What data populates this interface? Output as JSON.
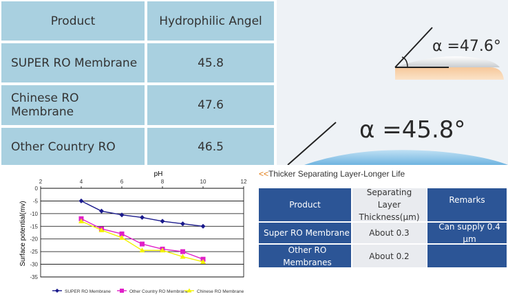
{
  "hydrophilic_table": {
    "header": {
      "product": "Product",
      "angle": "Hydrophilic Angel"
    },
    "rows": [
      {
        "product": "SUPER RO Membrane",
        "angle": "45.8"
      },
      {
        "product": "Chinese RO Membrane",
        "angle": "47.6"
      },
      {
        "product": "Other Country  RO",
        "angle": "46.5"
      }
    ]
  },
  "angle_panel": {
    "small_label": "α =47.6°",
    "large_label": "α =45.8°"
  },
  "chart_data": {
    "type": "line",
    "xlabel": "pH",
    "ylabel": "Surface potential(mv)",
    "xlim": [
      2,
      12
    ],
    "ylim": [
      -35,
      0
    ],
    "x_ticks": [
      "2",
      "4",
      "6",
      "8",
      "10",
      "12"
    ],
    "y_ticks": [
      "0",
      "-5",
      "-10",
      "-15",
      "-20",
      "-25",
      "-30",
      "-35"
    ],
    "series": [
      {
        "name": "SUPER RO Membrane",
        "color": "#1a1a8c",
        "marker": "diamond",
        "points": [
          [
            4,
            -5
          ],
          [
            5,
            -9
          ],
          [
            6,
            -10.5
          ],
          [
            7,
            -11.5
          ],
          [
            8,
            -13
          ],
          [
            9,
            -14
          ],
          [
            10,
            -15
          ]
        ]
      },
      {
        "name": "Other Country  RO  Membrane",
        "color": "#e020c8",
        "marker": "square",
        "points": [
          [
            4,
            -12
          ],
          [
            5,
            -16
          ],
          [
            6,
            -18
          ],
          [
            7,
            -22
          ],
          [
            8,
            -24
          ],
          [
            9,
            -25
          ],
          [
            10,
            -28
          ]
        ]
      },
      {
        "name": "Chinese RO Membrane",
        "color": "#f2f200",
        "marker": "triangle",
        "points": [
          [
            4,
            -13
          ],
          [
            5,
            -16.5
          ],
          [
            6,
            -19.5
          ],
          [
            7,
            -24.5
          ],
          [
            8,
            -24.5
          ],
          [
            9,
            -27
          ],
          [
            10,
            -29
          ]
        ]
      }
    ]
  },
  "thickness_table": {
    "title_arrows": "<<",
    "title": "Thicker Separating Layer-Longer Life",
    "header": {
      "product": "Product",
      "thickness": "Separating Layer Thickness(μm)",
      "remarks": "Remarks"
    },
    "rows": [
      {
        "product": "Super RO Membrane",
        "thickness": "About 0.3",
        "remarks": "Can supply 0.4 μm"
      },
      {
        "product": "Other RO Membranes",
        "thickness": "About 0.2",
        "remarks": ""
      }
    ]
  }
}
